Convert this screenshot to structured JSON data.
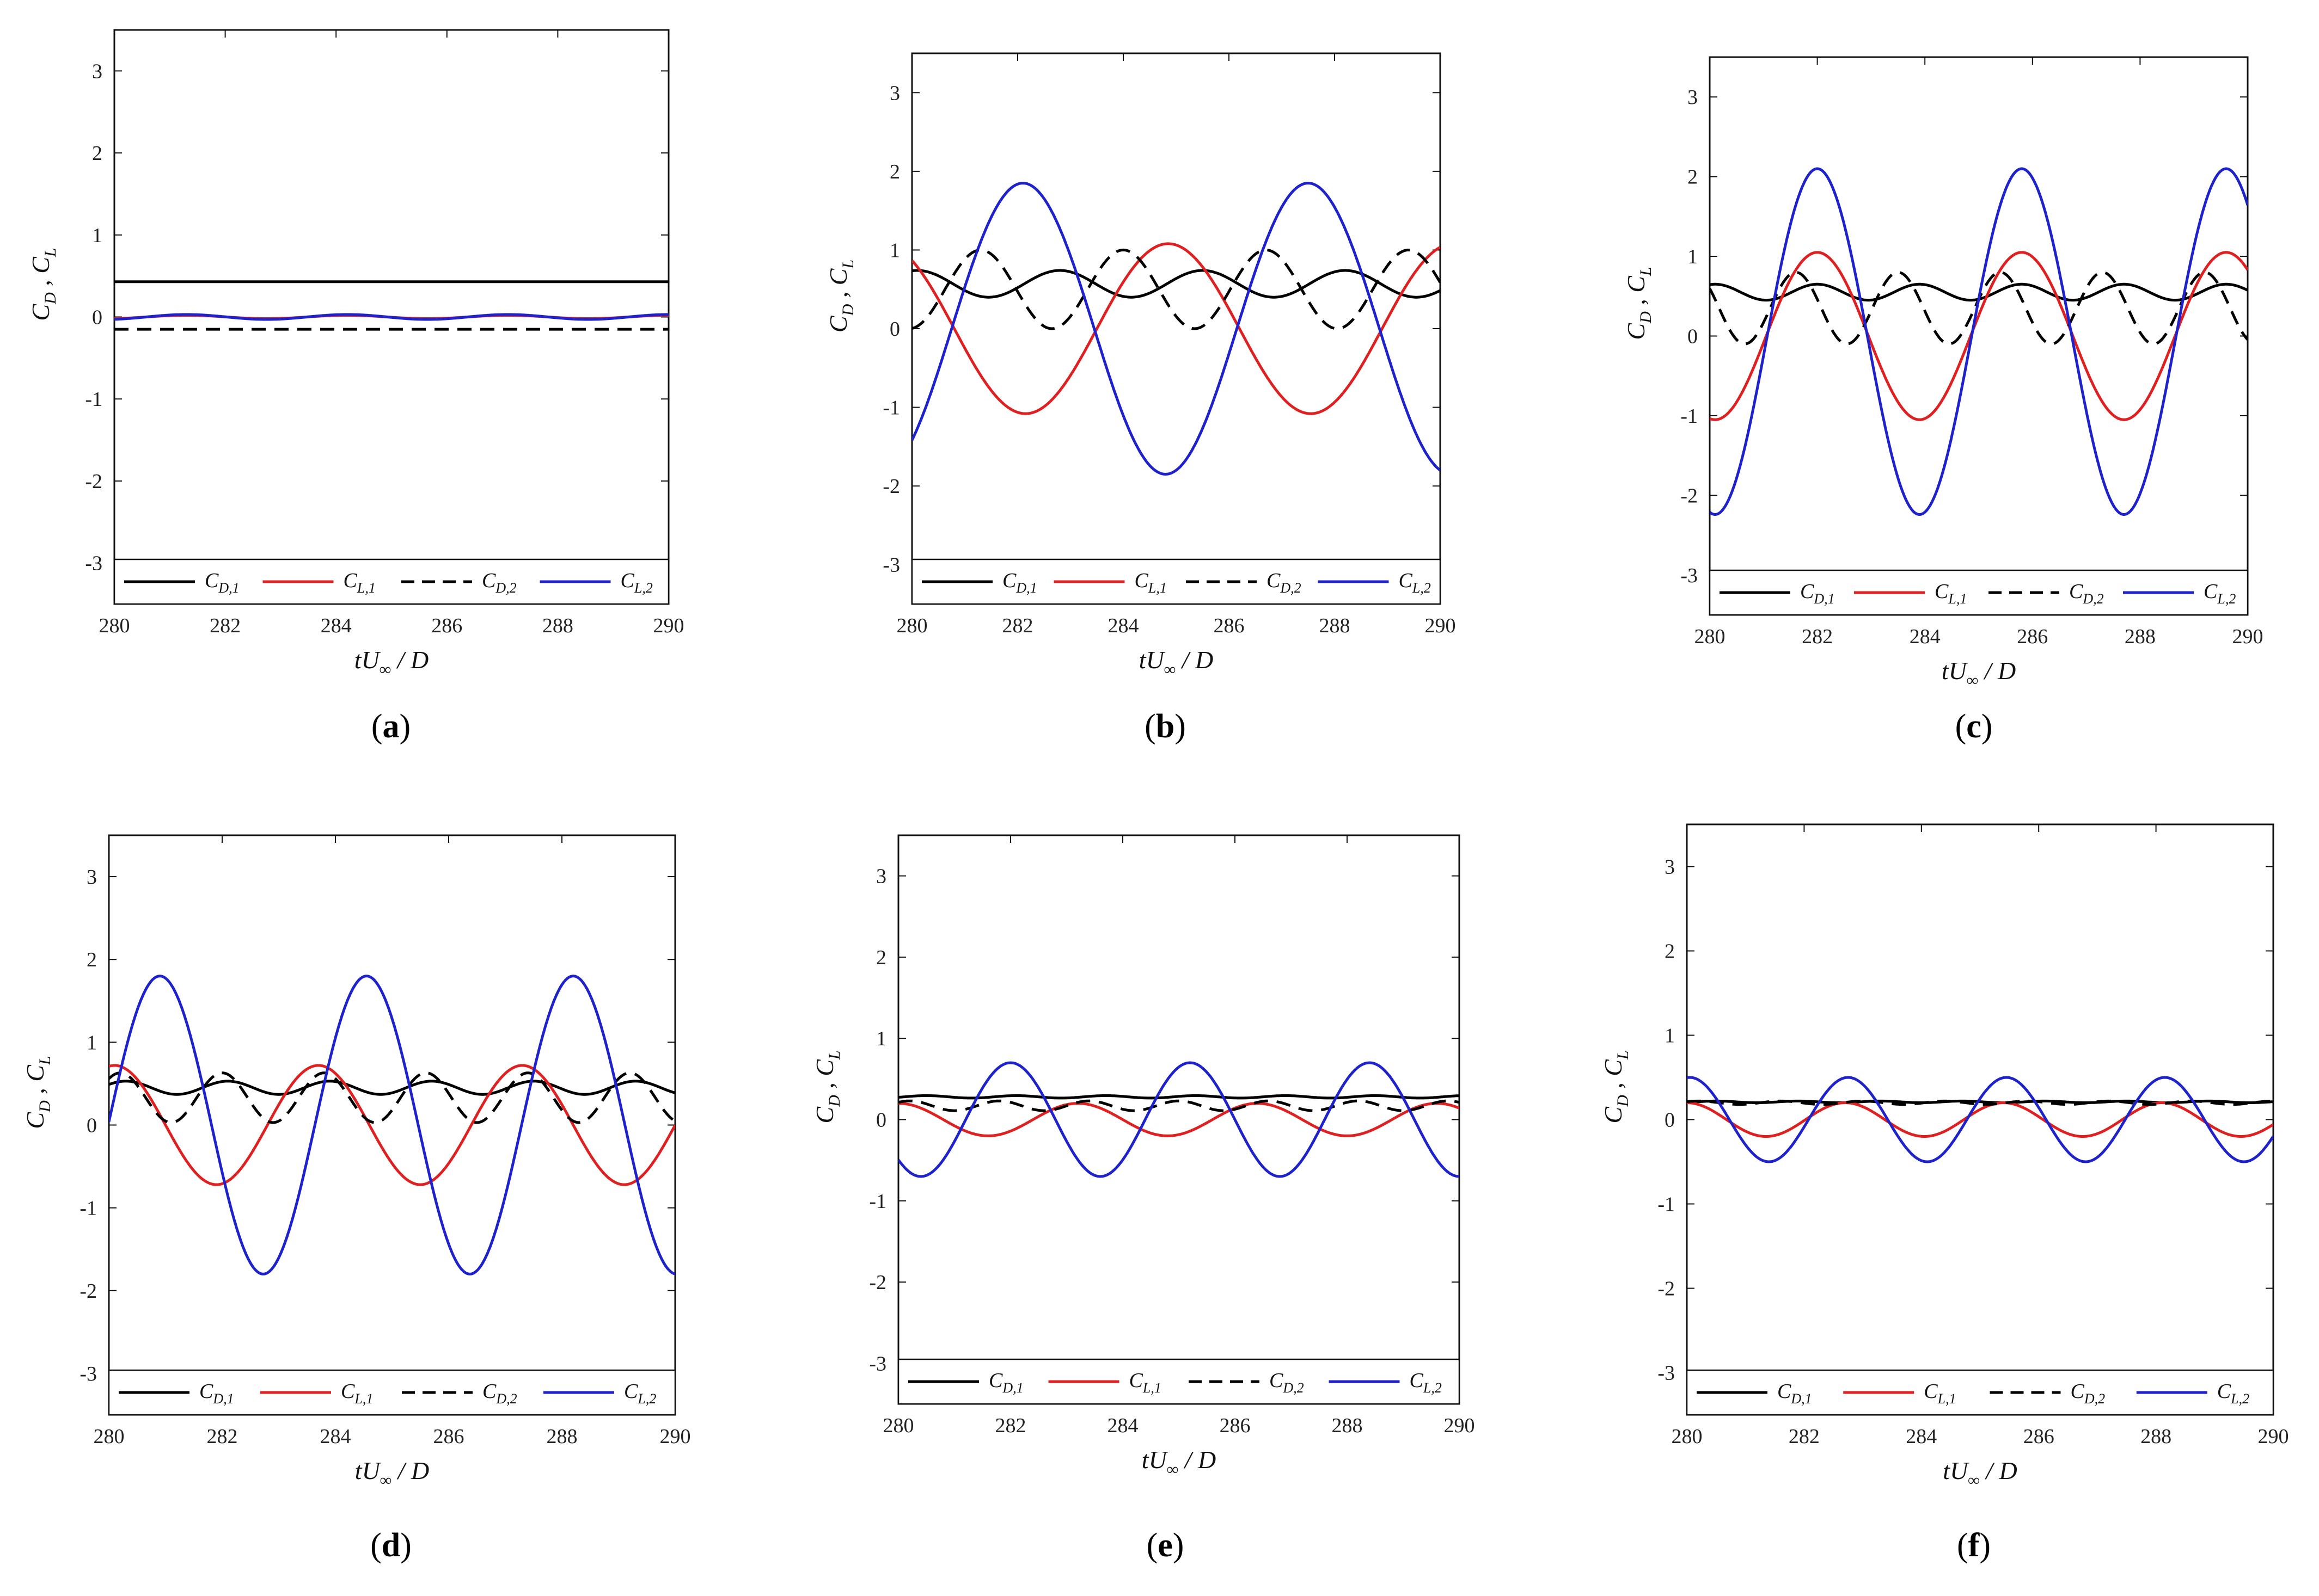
{
  "figure": {
    "panels": [
      "a",
      "b",
      "c",
      "d",
      "e",
      "f"
    ]
  },
  "chart_data": [
    {
      "id": "a",
      "caption": "a",
      "type": "line",
      "xlabel": "tU∞ / D",
      "ylabel": "CD , CL",
      "xlim": [
        280,
        290
      ],
      "ylim": [
        -3.5,
        3.5
      ],
      "xticks": [
        "280",
        "282",
        "284",
        "286",
        "288",
        "290"
      ],
      "yticks": [
        "3",
        "2",
        "1",
        "0",
        "-1",
        "-2",
        "-3"
      ],
      "legend": {
        "position": "bottom",
        "entries": [
          "C_D,1",
          "C_L,1",
          "C_D,2",
          "C_L,2"
        ]
      },
      "series": [
        {
          "name": "C_D,1",
          "color": "#000000",
          "dash": "solid",
          "mean": 0.43,
          "amp": 0.0,
          "period": 2.6,
          "phase": 0.0
        },
        {
          "name": "C_L,1",
          "color": "#e02020",
          "dash": "solid",
          "mean": 0.0,
          "amp": 0.02,
          "period": 2.9,
          "phase": 0.0
        },
        {
          "name": "C_D,2",
          "color": "#000000",
          "dash": "dashed",
          "mean": -0.15,
          "amp": 0.0,
          "period": 2.6,
          "phase": 0.0
        },
        {
          "name": "C_L,2",
          "color": "#1e22cc",
          "dash": "solid",
          "mean": 0.0,
          "amp": 0.03,
          "period": 2.9,
          "phase": 0.0
        }
      ]
    },
    {
      "id": "b",
      "caption": "b",
      "type": "line",
      "xlabel": "tU∞ / D",
      "ylabel": "CD , CL",
      "xlim": [
        280,
        290
      ],
      "ylim": [
        -3.5,
        3.5
      ],
      "xticks": [
        "280",
        "282",
        "284",
        "286",
        "288",
        "290"
      ],
      "yticks": [
        "3",
        "2",
        "1",
        "0",
        "-1",
        "-2",
        "-3"
      ],
      "legend": {
        "position": "bottom",
        "entries": [
          "C_D,1",
          "C_L,1",
          "C_D,2",
          "C_L,2"
        ]
      },
      "series": [
        {
          "name": "C_D,1",
          "color": "#000000",
          "dash": "solid",
          "mean": 0.57,
          "amp": 0.17,
          "period": 2.7,
          "phase": 282.8
        },
        {
          "name": "C_L,1",
          "color": "#e02020",
          "dash": "solid",
          "mean": 0.0,
          "amp": 1.08,
          "period": 5.4,
          "phase": 284.85
        },
        {
          "name": "C_D,2",
          "color": "#000000",
          "dash": "dashed",
          "mean": 0.5,
          "amp": 0.5,
          "period": 2.7,
          "phase": 281.3
        },
        {
          "name": "C_L,2",
          "color": "#1e22cc",
          "dash": "solid",
          "mean": 0.0,
          "amp": 1.85,
          "period": 5.4,
          "phase": 282.1
        }
      ]
    },
    {
      "id": "c",
      "caption": "c",
      "type": "line",
      "xlabel": "tU∞ / D",
      "ylabel": "CD , CL",
      "xlim": [
        280,
        290
      ],
      "ylim": [
        -3.5,
        3.5
      ],
      "xticks": [
        "280",
        "282",
        "284",
        "286",
        "288",
        "290"
      ],
      "yticks": [
        "3",
        "2",
        "1",
        "0",
        "-1",
        "-2",
        "-3"
      ],
      "legend": {
        "position": "bottom",
        "entries": [
          "C_D,1",
          "C_L,1",
          "C_D,2",
          "C_L,2"
        ]
      },
      "series": [
        {
          "name": "C_D,1",
          "color": "#000000",
          "dash": "solid",
          "mean": 0.55,
          "amp": 0.1,
          "period": 1.9,
          "phase": 282.0
        },
        {
          "name": "C_L,1",
          "color": "#e02020",
          "dash": "solid",
          "mean": 0.0,
          "amp": 1.05,
          "period": 3.8,
          "phase": 282.0
        },
        {
          "name": "C_D,2",
          "color": "#000000",
          "dash": "dashed",
          "mean": 0.35,
          "amp": 0.45,
          "period": 1.9,
          "phase": 281.6
        },
        {
          "name": "C_L,2",
          "color": "#1e22cc",
          "dash": "solid",
          "mean": -0.07,
          "amp": 2.17,
          "period": 3.8,
          "phase": 282.0
        }
      ]
    },
    {
      "id": "d",
      "caption": "d",
      "type": "line",
      "xlabel": "tU∞ / D",
      "ylabel": "CD , CL",
      "xlim": [
        280,
        290
      ],
      "ylim": [
        -3.5,
        3.5
      ],
      "xticks": [
        "280",
        "282",
        "284",
        "286",
        "288",
        "290"
      ],
      "yticks": [
        "3",
        "2",
        "1",
        "0",
        "-1",
        "-2",
        "-3"
      ],
      "legend": {
        "position": "bottom",
        "entries": [
          "C_D,1",
          "C_L,1",
          "C_D,2",
          "C_L,2"
        ]
      },
      "series": [
        {
          "name": "C_D,1",
          "color": "#000000",
          "dash": "solid",
          "mean": 0.45,
          "amp": 0.08,
          "period": 1.8,
          "phase": 280.3
        },
        {
          "name": "C_L,1",
          "color": "#e02020",
          "dash": "solid",
          "mean": 0.0,
          "amp": 0.72,
          "period": 3.6,
          "phase": 280.1
        },
        {
          "name": "C_D,2",
          "color": "#000000",
          "dash": "dashed",
          "mean": 0.33,
          "amp": 0.3,
          "period": 1.8,
          "phase": 280.2
        },
        {
          "name": "C_L,2",
          "color": "#1e22cc",
          "dash": "solid",
          "mean": 0.0,
          "amp": 1.8,
          "period": 3.65,
          "phase": 280.9
        }
      ]
    },
    {
      "id": "e",
      "caption": "e",
      "type": "line",
      "xlabel": "tU∞ / D",
      "ylabel": "CD , CL",
      "xlim": [
        280,
        290
      ],
      "ylim": [
        -3.5,
        3.5
      ],
      "xticks": [
        "280",
        "282",
        "284",
        "286",
        "288",
        "290"
      ],
      "yticks": [
        "3",
        "2",
        "1",
        "0",
        "-1",
        "-2",
        "-3"
      ],
      "legend": {
        "position": "bottom",
        "entries": [
          "C_D,1",
          "C_L,1",
          "C_D,2",
          "C_L,2"
        ]
      },
      "series": [
        {
          "name": "C_D,1",
          "color": "#000000",
          "dash": "solid",
          "mean": 0.28,
          "amp": 0.015,
          "period": 1.6,
          "phase": 280.5
        },
        {
          "name": "C_L,1",
          "color": "#e02020",
          "dash": "solid",
          "mean": 0.0,
          "amp": 0.2,
          "period": 3.2,
          "phase": 280.0
        },
        {
          "name": "C_D,2",
          "color": "#000000",
          "dash": "dashed",
          "mean": 0.17,
          "amp": 0.06,
          "period": 1.6,
          "phase": 280.2
        },
        {
          "name": "C_L,2",
          "color": "#1e22cc",
          "dash": "solid",
          "mean": 0.0,
          "amp": 0.7,
          "period": 3.2,
          "phase": 282.0
        }
      ]
    },
    {
      "id": "f",
      "caption": "f",
      "type": "line",
      "xlabel": "tU∞ / D",
      "ylabel": "CD , CL",
      "xlim": [
        280,
        290
      ],
      "ylim": [
        -3.5,
        3.5
      ],
      "xticks": [
        "280",
        "282",
        "284",
        "286",
        "288",
        "290"
      ],
      "yticks": [
        "3",
        "2",
        "1",
        "0",
        "-1",
        "-2",
        "-3"
      ],
      "legend": {
        "position": "bottom",
        "entries": [
          "C_D,1",
          "C_L,1",
          "C_D,2",
          "C_L,2"
        ]
      },
      "series": [
        {
          "name": "C_D,1",
          "color": "#000000",
          "dash": "solid",
          "mean": 0.21,
          "amp": 0.01,
          "period": 1.4,
          "phase": 280.5
        },
        {
          "name": "C_L,1",
          "color": "#e02020",
          "dash": "solid",
          "mean": 0.0,
          "amp": 0.2,
          "period": 2.7,
          "phase": 280.0
        },
        {
          "name": "C_D,2",
          "color": "#000000",
          "dash": "dashed",
          "mean": 0.2,
          "amp": 0.02,
          "period": 1.4,
          "phase": 280.2
        },
        {
          "name": "C_L,2",
          "color": "#1e22cc",
          "dash": "solid",
          "mean": 0.0,
          "amp": 0.5,
          "period": 2.7,
          "phase": 280.05
        }
      ]
    }
  ]
}
